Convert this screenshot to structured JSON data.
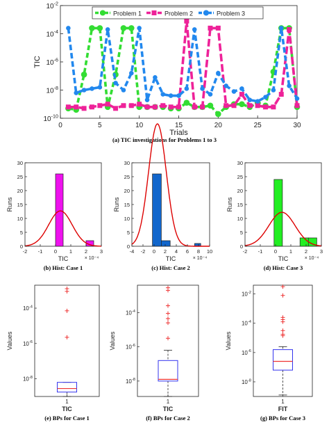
{
  "colors": {
    "problem1": "#33dd33",
    "problem2": "#ee2299",
    "problem3": "#2288ee",
    "fit": "#dd0000",
    "box": "#3333ee",
    "median": "#ee3333",
    "outlier": "#ee3333",
    "hist1": "#ee11ee",
    "hist2": "#1166cc",
    "hist3": "#22ee22"
  },
  "chart_data": [
    {
      "id": "tic",
      "type": "line",
      "title": "",
      "caption": "(a)    TIC investigations for Problems 1 to 3",
      "xlabel": "Trials",
      "ylabel": "TIC",
      "y_scale": "log",
      "xlim": [
        0,
        30
      ],
      "ylim_exp": [
        -10,
        -2
      ],
      "xticks": [
        "0",
        "5",
        "10",
        "15",
        "20",
        "25",
        "30"
      ],
      "yticks": [
        {
          "e": -10,
          "label": "10",
          "sup": "-10"
        },
        {
          "e": -8,
          "label": "10",
          "sup": "-8"
        },
        {
          "e": -6,
          "label": "10",
          "sup": "-6"
        },
        {
          "e": -4,
          "label": "10",
          "sup": "-4"
        },
        {
          "e": -2,
          "label": "10",
          "sup": "-2"
        }
      ],
      "legend_position": "top",
      "x": [
        1,
        2,
        3,
        4,
        5,
        6,
        7,
        8,
        9,
        10,
        11,
        12,
        13,
        14,
        15,
        16,
        17,
        18,
        19,
        20,
        21,
        22,
        23,
        24,
        25,
        26,
        27,
        28,
        29,
        30
      ],
      "series": [
        {
          "name": "Problem 1",
          "marker": "circle",
          "log10_values": [
            -9.3,
            -9.4,
            -6.9,
            -3.6,
            -3.6,
            -9.2,
            -6.9,
            -3.6,
            -3.6,
            -9.2,
            -9.2,
            -9.2,
            -9.2,
            -9.3,
            -9.3,
            -8.9,
            -9.2,
            -9.2,
            -9.1,
            -9.7,
            -9.2,
            -9.0,
            -9.0,
            -9.2,
            -8.9,
            -9.1,
            -6.7,
            -3.6,
            -3.6,
            -9.2
          ]
        },
        {
          "name": "Problem 2",
          "marker": "square",
          "log10_values": [
            -9.2,
            -9.2,
            -9.3,
            -9.2,
            -9.1,
            -9.0,
            -9.3,
            -9.1,
            -9.1,
            -9.0,
            -9.2,
            -9.2,
            -9.1,
            -9.2,
            -9.2,
            -3.1,
            -9.2,
            -9.2,
            -3.6,
            -3.6,
            -9.1,
            -9.1,
            -8.3,
            -9.1,
            -9.1,
            -9.2,
            -9.2,
            -8.3,
            -3.7,
            -9.1
          ]
        },
        {
          "name": "Problem 3",
          "marker": "circle",
          "log10_values": [
            -3.6,
            -8.2,
            -8.0,
            -7.9,
            -7.8,
            -3.7,
            -7.5,
            -8.0,
            -6.8,
            -3.6,
            -8.7,
            -7.1,
            -8.3,
            -8.4,
            -8.4,
            -7.9,
            -3.7,
            -7.9,
            -8.3,
            -6.8,
            -7.7,
            -8.1,
            -7.9,
            -8.7,
            -8.8,
            -8.5,
            -8.0,
            -3.6,
            -7.7,
            -8.6
          ]
        }
      ]
    },
    {
      "id": "hist1",
      "type": "bar",
      "caption": "(b) Hist: Case 1",
      "xlabel": "TIC",
      "ylabel": "Runs",
      "xlim": [
        -2,
        3
      ],
      "ylim": [
        0,
        30
      ],
      "xticks": [
        "-2",
        "-1",
        "0",
        "1",
        "2",
        "3"
      ],
      "yticks": [
        "0",
        "5",
        "10",
        "15",
        "20",
        "25",
        "30"
      ],
      "x_multiplier": "× 10⁻⁴",
      "bins": [
        {
          "from": 0,
          "to": 0.5,
          "count": 26
        },
        {
          "from": 2,
          "to": 2.5,
          "count": 2
        }
      ],
      "fit_curve": {
        "type": "normal",
        "mean": 0.32,
        "sd": 0.77,
        "scale": 12.7
      }
    },
    {
      "id": "hist2",
      "type": "bar",
      "caption": "(c) Hist: Case 2",
      "xlabel": "TIC",
      "ylabel": "Runs",
      "xlim": [
        -4,
        10
      ],
      "ylim": [
        0,
        30
      ],
      "xticks": [
        "-4",
        "-2",
        "0",
        "2",
        "4",
        "6",
        "8",
        "10"
      ],
      "yticks": [
        "0",
        "5",
        "10",
        "15",
        "20",
        "25",
        "30"
      ],
      "x_multiplier": "× 10⁻⁴",
      "bins": [
        {
          "from": -0.3,
          "to": 1.3,
          "count": 26
        },
        {
          "from": 1.3,
          "to": 2.9,
          "count": 2
        },
        {
          "from": 7.3,
          "to": 8.4,
          "count": 1
        }
      ],
      "fit_curve": {
        "type": "normal",
        "mean": 0.6,
        "sd": 1.6,
        "scale": 44
      }
    },
    {
      "id": "hist3",
      "type": "bar",
      "caption": "(d) Hist: Case 3",
      "xlabel": "TIC",
      "ylabel": "Runs",
      "xlim": [
        -2,
        3
      ],
      "ylim": [
        0,
        30
      ],
      "xticks": [
        "-2",
        "-1",
        "0",
        "1",
        "2",
        "3"
      ],
      "yticks": [
        "0",
        "5",
        "10",
        "15",
        "20",
        "25",
        "30"
      ],
      "x_multiplier": "× 10⁻⁴",
      "bins": [
        {
          "from": -0.1,
          "to": 0.45,
          "count": 24
        },
        {
          "from": 1.6,
          "to": 2.15,
          "count": 3
        },
        {
          "from": 2.15,
          "to": 2.7,
          "count": 3
        }
      ],
      "fit_curve": {
        "type": "normal",
        "mean": 0.42,
        "sd": 0.86,
        "scale": 12.2
      }
    },
    {
      "id": "box1",
      "type": "box",
      "caption": "(e) BPs for Case 1",
      "xlabel": "TIC",
      "ylabel": "Values",
      "y_scale": "log",
      "ylim_exp": [
        -9,
        -2.7
      ],
      "yticks": [
        {
          "e": -8,
          "label": "10",
          "sup": "-8"
        },
        {
          "e": -6,
          "label": "10",
          "sup": "-6"
        },
        {
          "e": -4,
          "label": "10",
          "sup": "-4"
        }
      ],
      "xticks": [
        "1"
      ],
      "log10_stats": {
        "whisker_low": -9.0,
        "q1": -8.75,
        "median": -8.55,
        "q3": -8.2,
        "whisker_high": -8.2
      },
      "log10_outliers": [
        -2.9,
        -3.05,
        -4.15,
        -5.65
      ]
    },
    {
      "id": "box2",
      "type": "box",
      "caption": "(f) BPs for Case 2",
      "xlabel": "TIC",
      "ylabel": "Values",
      "y_scale": "log",
      "ylim_exp": [
        -8.9,
        -2.4
      ],
      "yticks": [
        {
          "e": -8,
          "label": "10",
          "sup": "-8"
        },
        {
          "e": -6,
          "label": "10",
          "sup": "-6"
        },
        {
          "e": -4,
          "label": "10",
          "sup": "-4"
        }
      ],
      "xticks": [
        "1"
      ],
      "log10_stats": {
        "whisker_low": -8.9,
        "q1": -8.0,
        "median": -7.9,
        "q3": -6.8,
        "whisker_high": -6.2
      },
      "log10_outliers": [
        -2.55,
        -2.7,
        -3.6,
        -4.05,
        -4.35,
        -4.6,
        -5.5
      ]
    },
    {
      "id": "box3",
      "type": "box",
      "caption": "(g) BPs for Case 3",
      "xlabel": "FIT",
      "ylabel": "Values",
      "y_scale": "log",
      "ylim_exp": [
        -9,
        -1.4
      ],
      "yticks": [
        {
          "e": -8,
          "label": "10",
          "sup": "-8"
        },
        {
          "e": -6,
          "label": "10",
          "sup": "-6"
        },
        {
          "e": -4,
          "label": "10",
          "sup": "-4"
        },
        {
          "e": -2,
          "label": "10",
          "sup": "-2"
        }
      ],
      "xticks": [
        "1"
      ],
      "log10_stats": {
        "whisker_low": -8.9,
        "q1": -7.2,
        "median": -6.6,
        "q3": -5.8,
        "whisker_high": -5.6
      },
      "log10_outliers": [
        -1.5,
        -2.1,
        -3.6,
        -3.75,
        -3.9,
        -4.5,
        -4.75,
        -4.85
      ]
    }
  ]
}
